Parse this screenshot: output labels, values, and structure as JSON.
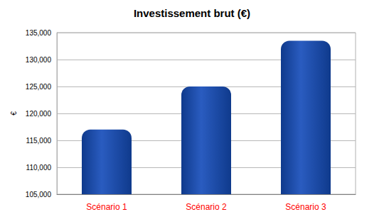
{
  "chart_data": {
    "type": "bar",
    "title": "Investissement brut (€)",
    "y_label": "€",
    "categories": [
      "Scénario 1",
      "Scénario 2",
      "Scénario 3"
    ],
    "values": [
      117000,
      125000,
      133500
    ],
    "color": "#0f3a8c",
    "ylim": [
      105000,
      135000
    ],
    "yticks": [
      105000,
      110000,
      115000,
      120000,
      125000,
      130000,
      135000
    ],
    "grid": true
  }
}
